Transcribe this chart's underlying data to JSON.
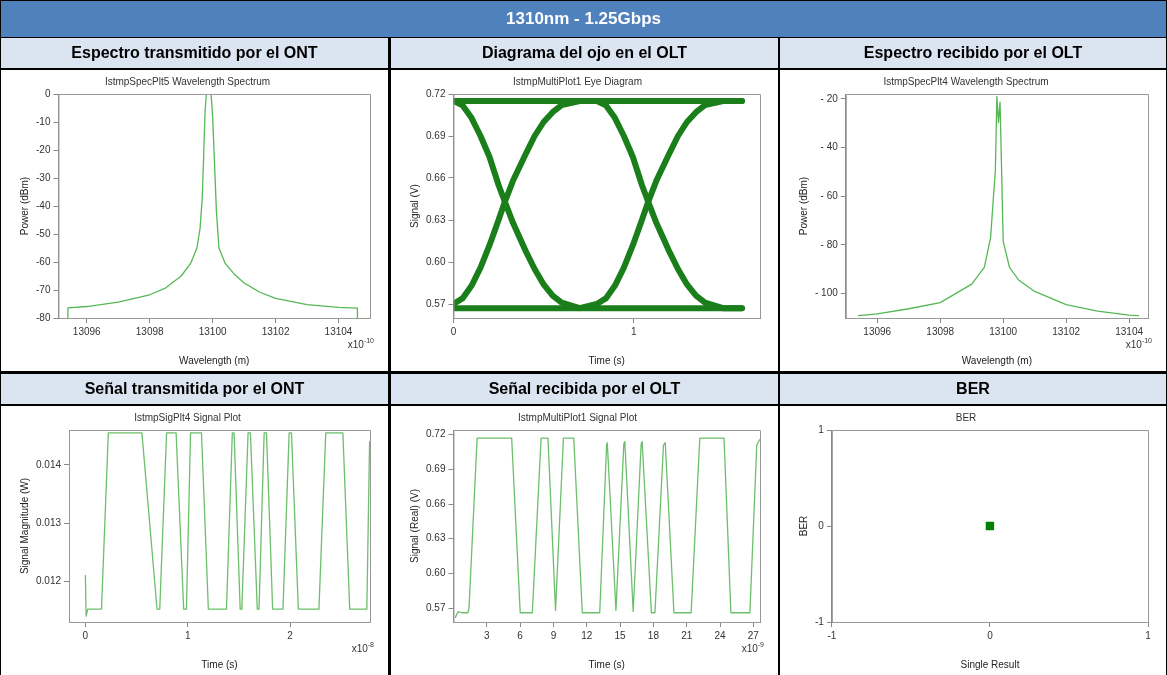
{
  "chart_data": [
    {
      "type": "other",
      "title": "1310nm - 1.25Gbps"
    },
    {
      "type": "line",
      "title": "Espectro transmitido por el ONT",
      "subtitle": "IstmpSpecPlt5 Wavelength Spectrum",
      "xlabel": "Wavelength (m)",
      "ylabel": "Power (dBm)",
      "annotations": [
        "x10$^{-10}$"
      ],
      "xlim": [
        13095.1,
        13105
      ],
      "xticks": [
        13096,
        13098,
        13100,
        13102,
        13104
      ],
      "ylim": [
        -80,
        0
      ],
      "yticks": [
        -80,
        -70,
        -60,
        -50,
        -40,
        -30,
        -20,
        -10,
        0
      ],
      "series": [
        {
          "color": "#55b855",
          "x": [
            13095.4,
            13095.4,
            13096,
            13097,
            13098,
            13098.5,
            13099,
            13099.3,
            13099.5,
            13099.6,
            13099.67,
            13099.72,
            13099.76,
            13099.8,
            13099.95,
            13100,
            13100.06,
            13100.12,
            13100.2,
            13100.4,
            13100.7,
            13101,
            13101.5,
            13102,
            13103,
            13104,
            13104.6,
            13104.6
          ],
          "values": [
            -80,
            -76.4,
            -75.9,
            -74.3,
            -71.7,
            -69.3,
            -65,
            -60.5,
            -55,
            -48,
            -37,
            -20,
            -6,
            0,
            0,
            -8,
            -25,
            -42,
            -55,
            -60.5,
            -64.5,
            -67.5,
            -70.8,
            -73,
            -75.2,
            -76.2,
            -76.5,
            -80
          ]
        }
      ]
    },
    {
      "type": "line",
      "title": "Diagrama del ojo en el OLT",
      "subtitle": "IstmpMultiPlot1 Eye Diagram",
      "xlabel": "Time (s)",
      "ylabel": "Signal (V)",
      "xlim": [
        0,
        1.7
      ],
      "xticks": [
        0,
        1
      ],
      "ylim": [
        0.56,
        0.72
      ],
      "yticks": [
        0.57,
        {
          "value": 0.6,
          "label": "0.60"
        },
        0.63,
        0.66,
        0.69,
        0.72
      ],
      "series": [
        {
          "color": "#1a7f1a",
          "x": [
            0,
            1.6
          ],
          "values": [
            0.715,
            0.715
          ]
        },
        {
          "color": "#1a7f1a",
          "x": [
            0,
            1.6
          ],
          "values": [
            0.567,
            0.567
          ]
        },
        {
          "color": "#1a7f1a",
          "x": [
            0,
            0.05,
            0.1,
            0.15,
            0.2,
            0.25,
            0.285,
            0.33,
            0.4,
            0.45,
            0.5,
            0.55,
            0.6,
            0.7,
            0.795,
            0.845,
            0.895,
            0.945,
            0.995,
            1.045,
            1.08,
            1.125,
            1.195,
            1.245,
            1.295,
            1.345,
            1.395,
            1.495,
            1.6
          ],
          "values": [
            0.57,
            0.574,
            0.583,
            0.596,
            0.612,
            0.63,
            0.643,
            0.658,
            0.677,
            0.69,
            0.7,
            0.707,
            0.712,
            0.715,
            0.715,
            0.712,
            0.703,
            0.69,
            0.675,
            0.655,
            0.643,
            0.628,
            0.608,
            0.595,
            0.584,
            0.576,
            0.571,
            0.567,
            0.567
          ]
        },
        {
          "color": "#1a7f1a",
          "x": [
            0,
            0.05,
            0.1,
            0.15,
            0.2,
            0.25,
            0.285,
            0.33,
            0.4,
            0.45,
            0.5,
            0.55,
            0.6,
            0.7,
            0.795,
            0.845,
            0.895,
            0.945,
            0.995,
            1.045,
            1.08,
            1.125,
            1.195,
            1.245,
            1.295,
            1.345,
            1.395,
            1.495,
            1.6
          ],
          "values": [
            0.715,
            0.712,
            0.703,
            0.69,
            0.675,
            0.655,
            0.643,
            0.628,
            0.608,
            0.595,
            0.584,
            0.576,
            0.571,
            0.567,
            0.57,
            0.574,
            0.583,
            0.596,
            0.612,
            0.63,
            0.643,
            0.658,
            0.677,
            0.69,
            0.7,
            0.707,
            0.712,
            0.715,
            0.715
          ]
        }
      ]
    },
    {
      "type": "line",
      "title": "Espectro recibido por el OLT",
      "subtitle": "IstmpSpecPlt4 Wavelength Spectrum",
      "xlabel": "Wavelength (m)",
      "ylabel": "Power (dBm)",
      "annotations": [
        "x10$^{-10}$"
      ],
      "xlim": [
        13095,
        13104.6
      ],
      "xticks": [
        13096,
        13098,
        13100,
        13102,
        13104
      ],
      "ylim": [
        -110,
        -18
      ],
      "yticks": [
        {
          "value": -100,
          "label": "- 100"
        },
        {
          "value": -80,
          "label": "- 80"
        },
        {
          "value": -60,
          "label": "- 60"
        },
        {
          "value": -40,
          "label": "- 40"
        },
        {
          "value": -20,
          "label": "- 20"
        }
      ],
      "series": [
        {
          "color": "#55b855",
          "x": [
            13095.4,
            13096,
            13097,
            13098,
            13099,
            13099.4,
            13099.6,
            13099.75,
            13099.8,
            13099.85,
            13099.9,
            13099.95,
            13100,
            13100.2,
            13100.5,
            13101,
            13102,
            13103,
            13104,
            13104.3
          ],
          "values": [
            -109,
            -108.3,
            -106.2,
            -103.7,
            -96.1,
            -89.2,
            -77,
            -49.5,
            -19,
            -29.7,
            -21.3,
            -49.5,
            -78.5,
            -89.2,
            -94.5,
            -99.1,
            -104.5,
            -107.2,
            -108.8,
            -109
          ]
        }
      ]
    },
    {
      "type": "line",
      "title": "Señal transmitida por el ONT",
      "subtitle": "IstmpSigPlt4 Signal Plot",
      "xlabel": "Time (s)",
      "ylabel": "Signal Magnitude (W)",
      "annotations": [
        "x10$^{-8}$"
      ],
      "xlim": [
        -0.16,
        2.78
      ],
      "xticks": [
        0,
        1,
        2
      ],
      "ylim": [
        0.0113,
        0.0146
      ],
      "yticks": [
        0.012,
        0.013,
        0.014
      ],
      "series": [
        {
          "color": "#6cbf6c",
          "x": [
            0,
            0.007,
            0.023,
            0.157,
            0.224,
            0.552,
            0.7,
            0.726,
            0.793,
            0.886,
            0.96,
            0.987,
            1.027,
            1.134,
            1.201,
            1.378,
            1.435,
            1.452,
            1.512,
            1.528,
            1.589,
            1.612,
            1.679,
            1.696,
            1.746,
            1.769,
            1.829,
            1.93,
            1.99,
            2.013,
            2.08,
            2.281,
            2.348,
            2.515,
            2.582,
            2.749,
            2.776
          ],
          "values": [
            0.0121,
            0.0114,
            0.01152,
            0.01152,
            0.01455,
            0.01455,
            0.01152,
            0.01152,
            0.01455,
            0.01455,
            0.01152,
            0.01152,
            0.01455,
            0.01455,
            0.01152,
            0.01152,
            0.01455,
            0.01455,
            0.01152,
            0.01152,
            0.01455,
            0.01455,
            0.01152,
            0.01152,
            0.01455,
            0.01455,
            0.01152,
            0.01152,
            0.01455,
            0.01455,
            0.01152,
            0.01152,
            0.01455,
            0.01455,
            0.01152,
            0.01152,
            0.0144
          ]
        }
      ]
    },
    {
      "type": "line",
      "title": "Señal recibida por el OLT",
      "subtitle": "IstmpMultiPlot1 Signal Plot",
      "xlabel": "Time (s)",
      "ylabel": "Signal (Real) (V)",
      "annotations": [
        "x10$^{-9}$"
      ],
      "xlim": [
        0,
        27.6
      ],
      "xticks": [
        3,
        6,
        9,
        12,
        15,
        18,
        21,
        24,
        27
      ],
      "ylim": [
        0.558,
        0.724
      ],
      "yticks": [
        0.57,
        {
          "value": 0.6,
          "label": "0.60"
        },
        0.63,
        0.66,
        0.69,
        0.72
      ],
      "series": [
        {
          "color": "#6cbf6c",
          "x": [
            0.17,
            0.42,
            0.73,
            1.29,
            1.4,
            2.13,
            5.24,
            6.01,
            7.1,
            7.89,
            8.51,
            9.19,
            9.9,
            10.83,
            11.6,
            13.17,
            13.79,
            13.85,
            14.63,
            15.34,
            15.43,
            16.18,
            16.9,
            16.99,
            17.82,
            18.14,
            18.91,
            19.07,
            19.85,
            21.4,
            22.18,
            24.36,
            24.98,
            26.69,
            27.31,
            27.6
          ],
          "values": [
            0.562,
            0.567,
            0.566,
            0.566,
            0.57,
            0.717,
            0.717,
            0.566,
            0.566,
            0.717,
            0.717,
            0.568,
            0.717,
            0.717,
            0.566,
            0.566,
            0.711,
            0.713,
            0.568,
            0.712,
            0.714,
            0.567,
            0.712,
            0.714,
            0.566,
            0.566,
            0.711,
            0.713,
            0.566,
            0.566,
            0.717,
            0.717,
            0.566,
            0.566,
            0.711,
            0.716
          ]
        }
      ]
    },
    {
      "type": "scatter",
      "title": "BER",
      "subtitle": "BER",
      "xlabel": "Single Result",
      "ylabel": "BER",
      "marker": "square",
      "xlim": [
        -1,
        1
      ],
      "xticks": [
        -1,
        0,
        1
      ],
      "ylim": [
        -1,
        1
      ],
      "yticks": [
        -1,
        0,
        1
      ],
      "series": [
        {
          "color": "#008000",
          "x": [
            0
          ],
          "values": [
            0
          ]
        }
      ]
    }
  ]
}
